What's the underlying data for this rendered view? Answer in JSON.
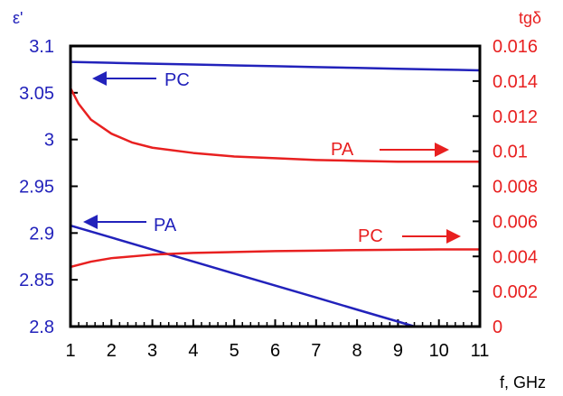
{
  "chart_data": {
    "type": "line",
    "x_axis": {
      "label": "f, GHz",
      "range": [
        1,
        11
      ],
      "ticks": [
        "1",
        "2",
        "3",
        "4",
        "5",
        "6",
        "7",
        "8",
        "9",
        "10",
        "11"
      ]
    },
    "y_left": {
      "label": "ε'",
      "range": [
        2.8,
        3.1
      ],
      "ticks": [
        "2.8",
        "2.85",
        "2.9",
        "2.95",
        "3",
        "3.05",
        "3.1"
      ],
      "color": "#2222bb"
    },
    "y_right": {
      "label": "tgδ",
      "range": [
        0,
        0.016
      ],
      "ticks": [
        "0",
        "0.002",
        "0.004",
        "0.006",
        "0.008",
        "0.01",
        "0.012",
        "0.014",
        "0.016"
      ],
      "color": "#e82020"
    },
    "grid": false,
    "series": [
      {
        "name": "PC",
        "axis": "left",
        "color": "#2222bb",
        "x": [
          1,
          2,
          3,
          4,
          5,
          6,
          7,
          8,
          9,
          10,
          11
        ],
        "y": [
          3.083,
          3.082,
          3.0811,
          3.0802,
          3.0793,
          3.0784,
          3.0775,
          3.0766,
          3.0757,
          3.0748,
          3.074
        ]
      },
      {
        "name": "PA",
        "axis": "left",
        "color": "#2222bb",
        "x": [
          1,
          2,
          3,
          4,
          5,
          6,
          7,
          8,
          9,
          10,
          11
        ],
        "y": [
          2.908,
          2.8952,
          2.8823,
          2.8695,
          2.8566,
          2.8438,
          2.831,
          2.8181,
          2.8053,
          2.7924,
          2.7796
        ]
      },
      {
        "name": "PA",
        "axis": "right",
        "color": "#e82020",
        "x": [
          1,
          1.2,
          1.5,
          2,
          2.5,
          3,
          4,
          5,
          6,
          7,
          8,
          9,
          10,
          11
        ],
        "y": [
          0.0136,
          0.0127,
          0.0118,
          0.011,
          0.0105,
          0.0102,
          0.0099,
          0.0097,
          0.0096,
          0.0095,
          0.00945,
          0.0094,
          0.0094,
          0.0094
        ]
      },
      {
        "name": "PC",
        "axis": "right",
        "color": "#e82020",
        "x": [
          1,
          1.5,
          2,
          3,
          4,
          5,
          6,
          7,
          8,
          9,
          10,
          11
        ],
        "y": [
          0.0034,
          0.0037,
          0.0039,
          0.0041,
          0.0042,
          0.00425,
          0.0043,
          0.00433,
          0.00436,
          0.00438,
          0.0044,
          0.0044
        ]
      }
    ],
    "annotations": [
      {
        "text": "PC",
        "color": "#2222bb",
        "arrow": "left"
      },
      {
        "text": "PA",
        "color": "#2222bb",
        "arrow": "left"
      },
      {
        "text": "PA",
        "color": "#e82020",
        "arrow": "right"
      },
      {
        "text": "PC",
        "color": "#e82020",
        "arrow": "right"
      }
    ]
  }
}
